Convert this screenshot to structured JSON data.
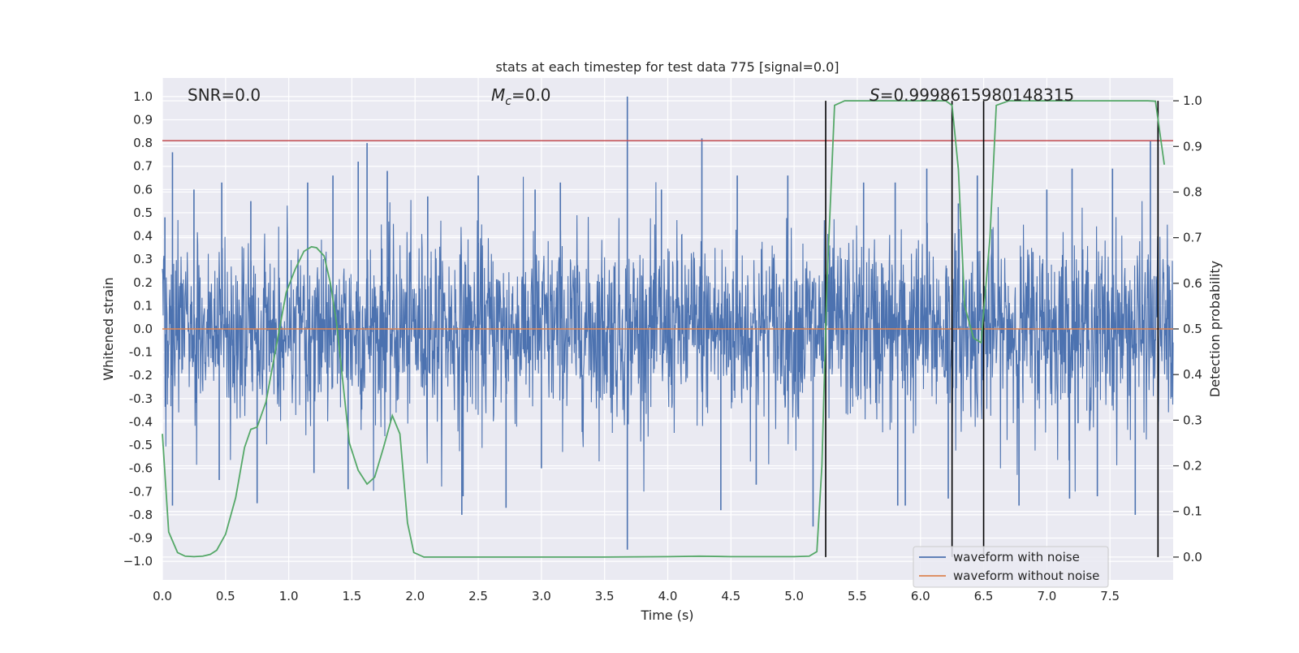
{
  "chart_data": {
    "type": "line",
    "title": "stats at each timestep for test data 775 [signal=0.0]",
    "xlabel": "Time (s)",
    "ylabel_left": "Whitened strain",
    "ylabel_right": "Detection probability",
    "xlim": [
      0.0,
      8.0
    ],
    "ylim_left": [
      -1.08,
      1.08
    ],
    "ylim_right": [
      -0.05,
      1.05
    ],
    "x_ticks": [
      0.0,
      0.5,
      1.0,
      1.5,
      2.0,
      2.5,
      3.0,
      3.5,
      4.0,
      4.5,
      5.0,
      5.5,
      6.0,
      6.5,
      7.0,
      7.5
    ],
    "x_tick_labels": [
      "0.0",
      "0.5",
      "1.0",
      "1.5",
      "2.0",
      "2.5",
      "3.0",
      "3.5",
      "4.0",
      "4.5",
      "5.0",
      "5.5",
      "6.0",
      "6.5",
      "7.0",
      "7.5"
    ],
    "y_left_ticks": [
      1.0,
      0.9,
      0.8,
      0.7,
      0.6,
      0.5,
      0.4,
      0.3,
      0.2,
      0.1,
      0.0,
      -0.1,
      -0.2,
      -0.3,
      -0.4,
      -0.5,
      -0.6,
      -0.7,
      -0.8,
      -0.9,
      -1.0
    ],
    "y_left_tick_labels": [
      "1.0",
      "0.9",
      "0.8",
      "0.7",
      "0.6",
      "0.5",
      "0.4",
      "0.3",
      "0.2",
      "0.1",
      "0.0",
      "-0.1",
      "-0.2",
      "-0.3",
      "-0.4",
      "-0.5",
      "-0.6",
      "-0.7",
      "-0.8",
      "-0.9",
      "−1.0"
    ],
    "y_right_ticks": [
      1.0,
      0.9,
      0.8,
      0.7,
      0.6,
      0.5,
      0.4,
      0.3,
      0.2,
      0.1,
      0.0
    ],
    "y_right_tick_labels": [
      "1.0",
      "0.9",
      "0.8",
      "0.7",
      "0.6",
      "0.5",
      "0.4",
      "0.3",
      "0.2",
      "0.1",
      "0.0"
    ],
    "annotations": {
      "snr": "SNR=0.0",
      "mc_symbol": "M",
      "mc_subscript": "c",
      "mc_value": "=0.0",
      "s_symbol": "S",
      "s_value": "=0.9998615980148315"
    },
    "threshold_left": 0.81,
    "threshold_color": "#c44e52",
    "noise_series": {
      "name": "waveform with noise",
      "color": "#4c72b0",
      "std": 0.2,
      "spikes": [
        [
          0.02,
          0.48
        ],
        [
          0.08,
          0.76
        ],
        [
          0.25,
          0.6
        ],
        [
          0.47,
          0.63
        ],
        [
          0.7,
          0.55
        ],
        [
          1.15,
          0.63
        ],
        [
          1.35,
          0.66
        ],
        [
          1.55,
          0.72
        ],
        [
          1.62,
          0.8
        ],
        [
          1.78,
          0.68
        ],
        [
          2.1,
          0.57
        ],
        [
          2.5,
          0.66
        ],
        [
          2.95,
          0.6
        ],
        [
          3.15,
          0.63
        ],
        [
          3.68,
          1.0
        ],
        [
          3.95,
          0.6
        ],
        [
          4.27,
          0.82
        ],
        [
          4.55,
          0.66
        ],
        [
          4.95,
          0.66
        ],
        [
          5.55,
          0.63
        ],
        [
          5.8,
          0.63
        ],
        [
          6.05,
          0.69
        ],
        [
          6.3,
          0.54
        ],
        [
          6.45,
          0.66
        ],
        [
          7.0,
          0.6
        ],
        [
          7.2,
          0.69
        ],
        [
          7.52,
          0.69
        ],
        [
          7.82,
          0.81
        ],
        [
          7.88,
          0.87
        ],
        [
          0.08,
          -0.76
        ],
        [
          0.45,
          -0.65
        ],
        [
          0.75,
          -0.75
        ],
        [
          1.2,
          -0.62
        ],
        [
          1.47,
          -0.69
        ],
        [
          2.38,
          -0.72
        ],
        [
          2.37,
          -0.8
        ],
        [
          2.72,
          -0.77
        ],
        [
          3.0,
          -0.6
        ],
        [
          3.68,
          -0.95
        ],
        [
          4.42,
          -0.78
        ],
        [
          4.7,
          -0.67
        ],
        [
          5.15,
          -0.85
        ],
        [
          5.82,
          -0.76
        ],
        [
          5.88,
          -0.76
        ],
        [
          6.22,
          -0.73
        ],
        [
          6.78,
          -0.76
        ],
        [
          7.18,
          -0.73
        ],
        [
          7.4,
          -0.72
        ],
        [
          7.7,
          -0.8
        ]
      ]
    },
    "clean_series": {
      "name": "waveform without noise",
      "color": "#dd8452",
      "x": [
        0.0,
        8.0
      ],
      "y": [
        0.0,
        0.0
      ]
    },
    "probability_series": {
      "name": "detection probability",
      "color": "#55a868",
      "x": [
        0.0,
        0.05,
        0.12,
        0.18,
        0.25,
        0.32,
        0.38,
        0.43,
        0.5,
        0.58,
        0.65,
        0.7,
        0.75,
        0.82,
        0.9,
        0.98,
        1.05,
        1.12,
        1.18,
        1.22,
        1.28,
        1.33,
        1.38,
        1.43,
        1.48,
        1.55,
        1.62,
        1.68,
        1.75,
        1.82,
        1.88,
        1.94,
        1.99,
        2.07,
        2.5,
        3.0,
        3.5,
        4.0,
        4.25,
        4.5,
        5.0,
        5.12,
        5.18,
        5.22,
        5.26,
        5.32,
        5.4,
        6.2,
        6.25,
        6.3,
        6.35,
        6.42,
        6.48,
        6.55,
        6.6,
        6.7,
        7.8,
        7.86,
        7.93
      ],
      "y": [
        0.27,
        0.055,
        0.01,
        0.002,
        0.001,
        0.002,
        0.006,
        0.015,
        0.05,
        0.13,
        0.24,
        0.28,
        0.285,
        0.34,
        0.46,
        0.58,
        0.63,
        0.67,
        0.68,
        0.678,
        0.66,
        0.6,
        0.51,
        0.38,
        0.25,
        0.19,
        0.16,
        0.175,
        0.24,
        0.31,
        0.27,
        0.075,
        0.01,
        0.0,
        0.0,
        0.0,
        0.0,
        0.001,
        0.002,
        0.001,
        0.001,
        0.002,
        0.012,
        0.2,
        0.6,
        0.99,
        1.0,
        1.0,
        0.99,
        0.85,
        0.55,
        0.48,
        0.47,
        0.7,
        0.99,
        1.0,
        1.0,
        0.999,
        0.86
      ]
    },
    "vertical_markers": [
      5.25,
      6.25,
      6.5,
      7.88
    ],
    "legend": {
      "position": "bottom-right",
      "entries": [
        {
          "label": "waveform with noise",
          "color": "#4c72b0"
        },
        {
          "label": "waveform without noise",
          "color": "#dd8452"
        }
      ]
    }
  }
}
